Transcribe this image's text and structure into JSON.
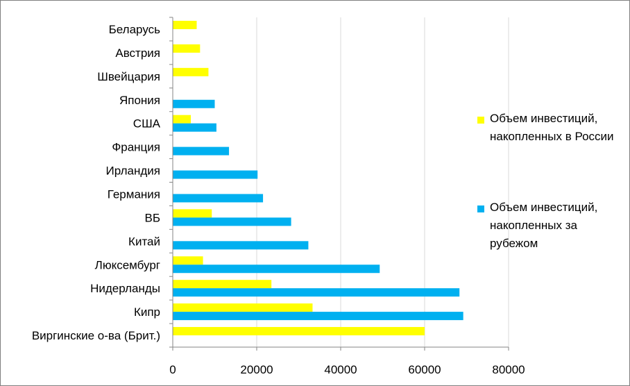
{
  "chart_data": {
    "type": "bar",
    "orientation": "horizontal",
    "categories": [
      "Беларусь",
      "Австрия",
      "Швейцария",
      "Япония",
      "США",
      "Франция",
      "Ирландия",
      "Германия",
      "ВБ",
      "Китай",
      "Люксембург",
      "Нидерланды",
      "Кипр",
      "Виргинские о-ва (Брит.)"
    ],
    "series": [
      {
        "name": "Объем инвестиций, накопленных в России",
        "color": "#ffff00",
        "values": [
          5700,
          6500,
          8500,
          null,
          4300,
          null,
          null,
          null,
          9300,
          null,
          7200,
          23500,
          33300,
          60000
        ]
      },
      {
        "name": "Объем инвестиций, накопленных за рубежом",
        "color": "#00b0f0",
        "values": [
          null,
          null,
          null,
          10000,
          10400,
          13400,
          20200,
          21500,
          28200,
          32300,
          49300,
          68300,
          69200,
          null
        ]
      }
    ],
    "xlim": [
      0,
      80000
    ],
    "xticks": [
      0,
      20000,
      40000,
      60000,
      80000
    ],
    "xtick_labels": [
      "0",
      "20000",
      "40000",
      "60000",
      "80000"
    ],
    "grid": "vertical",
    "legend_position": "right"
  }
}
